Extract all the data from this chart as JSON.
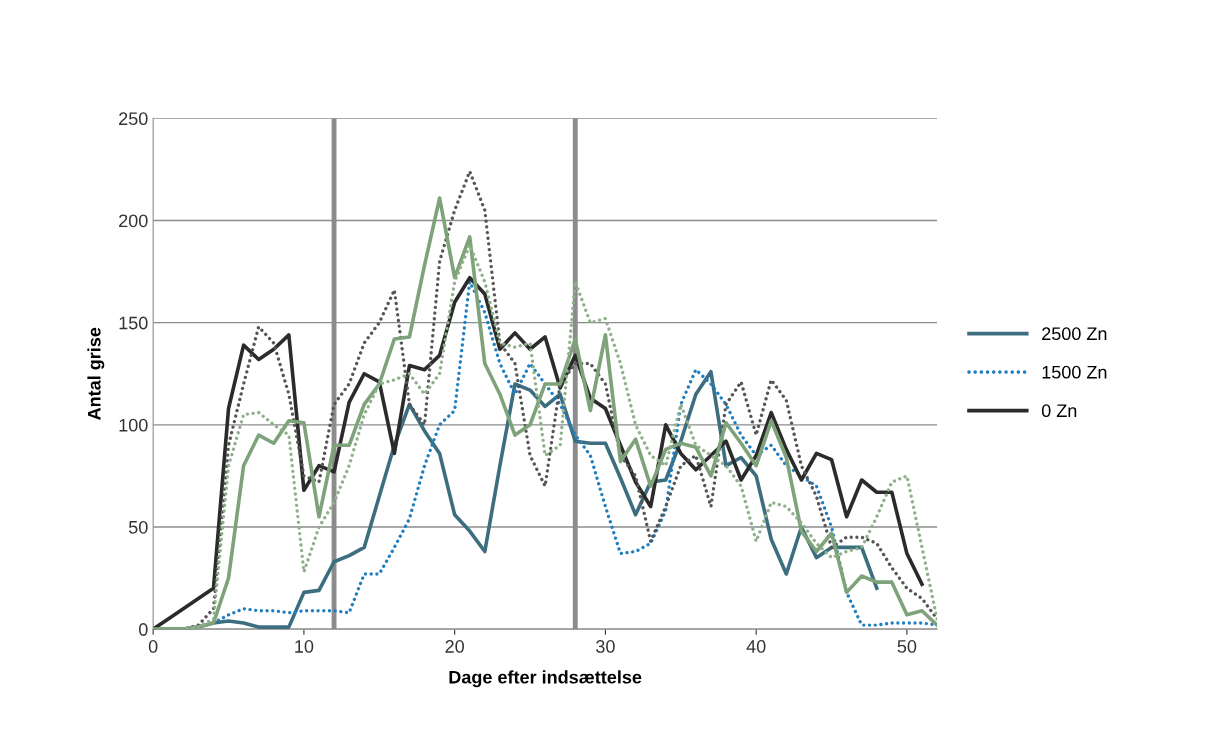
{
  "chart_data": {
    "type": "line",
    "xlabel": "Dage efter indsættelse",
    "ylabel": "Antal grise",
    "x": [
      0,
      1,
      2,
      3,
      4,
      5,
      6,
      7,
      8,
      9,
      10,
      11,
      12,
      13,
      14,
      15,
      16,
      17,
      18,
      19,
      20,
      21,
      22,
      23,
      24,
      25,
      26,
      27,
      28,
      29,
      30,
      31,
      32,
      33,
      34,
      35,
      36,
      37,
      38,
      39,
      40,
      41,
      42,
      43,
      44,
      45,
      46,
      47,
      48,
      49,
      50,
      51,
      52
    ],
    "xlim": [
      0,
      52
    ],
    "xticks": [
      0,
      10,
      20,
      30,
      40,
      50
    ],
    "ylim": [
      0,
      250
    ],
    "yticks": [
      0,
      50,
      100,
      150,
      200,
      250
    ],
    "grid": "y",
    "legend": "right",
    "marker": "none",
    "ref_lines": [
      {
        "axis": "x",
        "value": 12,
        "color": "#8c8c8c"
      },
      {
        "axis": "x",
        "value": 28,
        "color": "#8c8c8c"
      }
    ],
    "series": [
      {
        "name": "2500 Zn",
        "color": "#3d6e80",
        "line_style": "solid",
        "values": [
          0,
          0,
          0,
          1,
          3,
          4,
          3,
          1,
          1,
          1,
          18,
          19,
          33,
          36,
          40,
          65,
          90,
          110,
          97,
          86,
          56,
          48,
          38,
          80,
          120,
          117,
          109,
          115,
          92,
          91,
          91,
          74,
          56,
          72,
          73,
          92,
          115,
          126,
          80,
          84,
          75,
          44,
          27,
          50,
          35,
          40,
          40,
          40,
          20,
          null,
          null,
          null,
          null
        ]
      },
      {
        "name": "1500 Zn",
        "color": "#1f7fc0",
        "line_style": "dotted",
        "values": [
          null,
          null,
          null,
          null,
          3,
          7,
          10,
          9,
          9,
          8,
          9,
          9,
          9,
          8,
          27,
          27,
          40,
          54,
          80,
          100,
          107,
          170,
          155,
          130,
          115,
          130,
          120,
          110,
          95,
          85,
          60,
          37,
          38,
          42,
          58,
          110,
          127,
          120,
          110,
          95,
          85,
          90,
          80,
          75,
          70,
          50,
          18,
          2,
          2,
          3,
          3,
          3,
          2
        ]
      },
      {
        "name": "0 Zn",
        "color": "#2b2b2b",
        "line_style": "solid",
        "values": [
          0,
          5,
          10,
          15,
          20,
          108,
          139,
          132,
          137,
          144,
          68,
          80,
          77,
          111,
          125,
          121,
          86,
          129,
          127,
          134,
          160,
          172,
          164,
          137,
          145,
          137,
          143,
          118,
          134,
          113,
          108,
          90,
          72,
          60,
          100,
          86,
          78,
          85,
          92,
          73,
          85,
          106,
          88,
          73,
          86,
          83,
          55,
          73,
          67,
          67,
          37,
          22,
          null
        ]
      },
      {
        "color": "#555555",
        "line_style": "dotted",
        "values": [
          0,
          0,
          0,
          2,
          10,
          90,
          120,
          148,
          140,
          115,
          75,
          72,
          110,
          120,
          140,
          150,
          166,
          110,
          100,
          180,
          205,
          224,
          205,
          140,
          130,
          85,
          70,
          120,
          130,
          130,
          120,
          85,
          75,
          43,
          60,
          80,
          85,
          60,
          110,
          121,
          95,
          122,
          112,
          80,
          65,
          40,
          45,
          45,
          42,
          30,
          20,
          15,
          5
        ]
      },
      {
        "color": "#7ea37a",
        "line_style": "solid",
        "values": [
          0,
          0,
          0,
          1,
          3,
          25,
          80,
          95,
          91,
          102,
          101,
          55,
          90,
          90,
          110,
          120,
          142,
          143,
          178,
          211,
          172,
          192,
          130,
          115,
          95,
          100,
          120,
          120,
          142,
          107,
          144,
          82,
          93,
          70,
          88,
          91,
          89,
          75,
          101,
          91,
          80,
          102,
          84,
          48,
          38,
          47,
          18,
          26,
          23,
          23,
          7,
          9,
          2
        ]
      },
      {
        "color": "#8fb08a",
        "line_style": "dotted",
        "values": [
          0,
          0,
          0,
          1,
          5,
          80,
          105,
          106,
          100,
          95,
          28,
          50,
          62,
          80,
          105,
          120,
          122,
          125,
          115,
          125,
          170,
          188,
          170,
          140,
          138,
          140,
          85,
          90,
          170,
          150,
          152,
          130,
          100,
          85,
          80,
          110,
          90,
          85,
          80,
          70,
          43,
          62,
          60,
          52,
          42,
          35,
          38,
          40,
          55,
          72,
          75,
          40,
          5
        ]
      }
    ]
  }
}
